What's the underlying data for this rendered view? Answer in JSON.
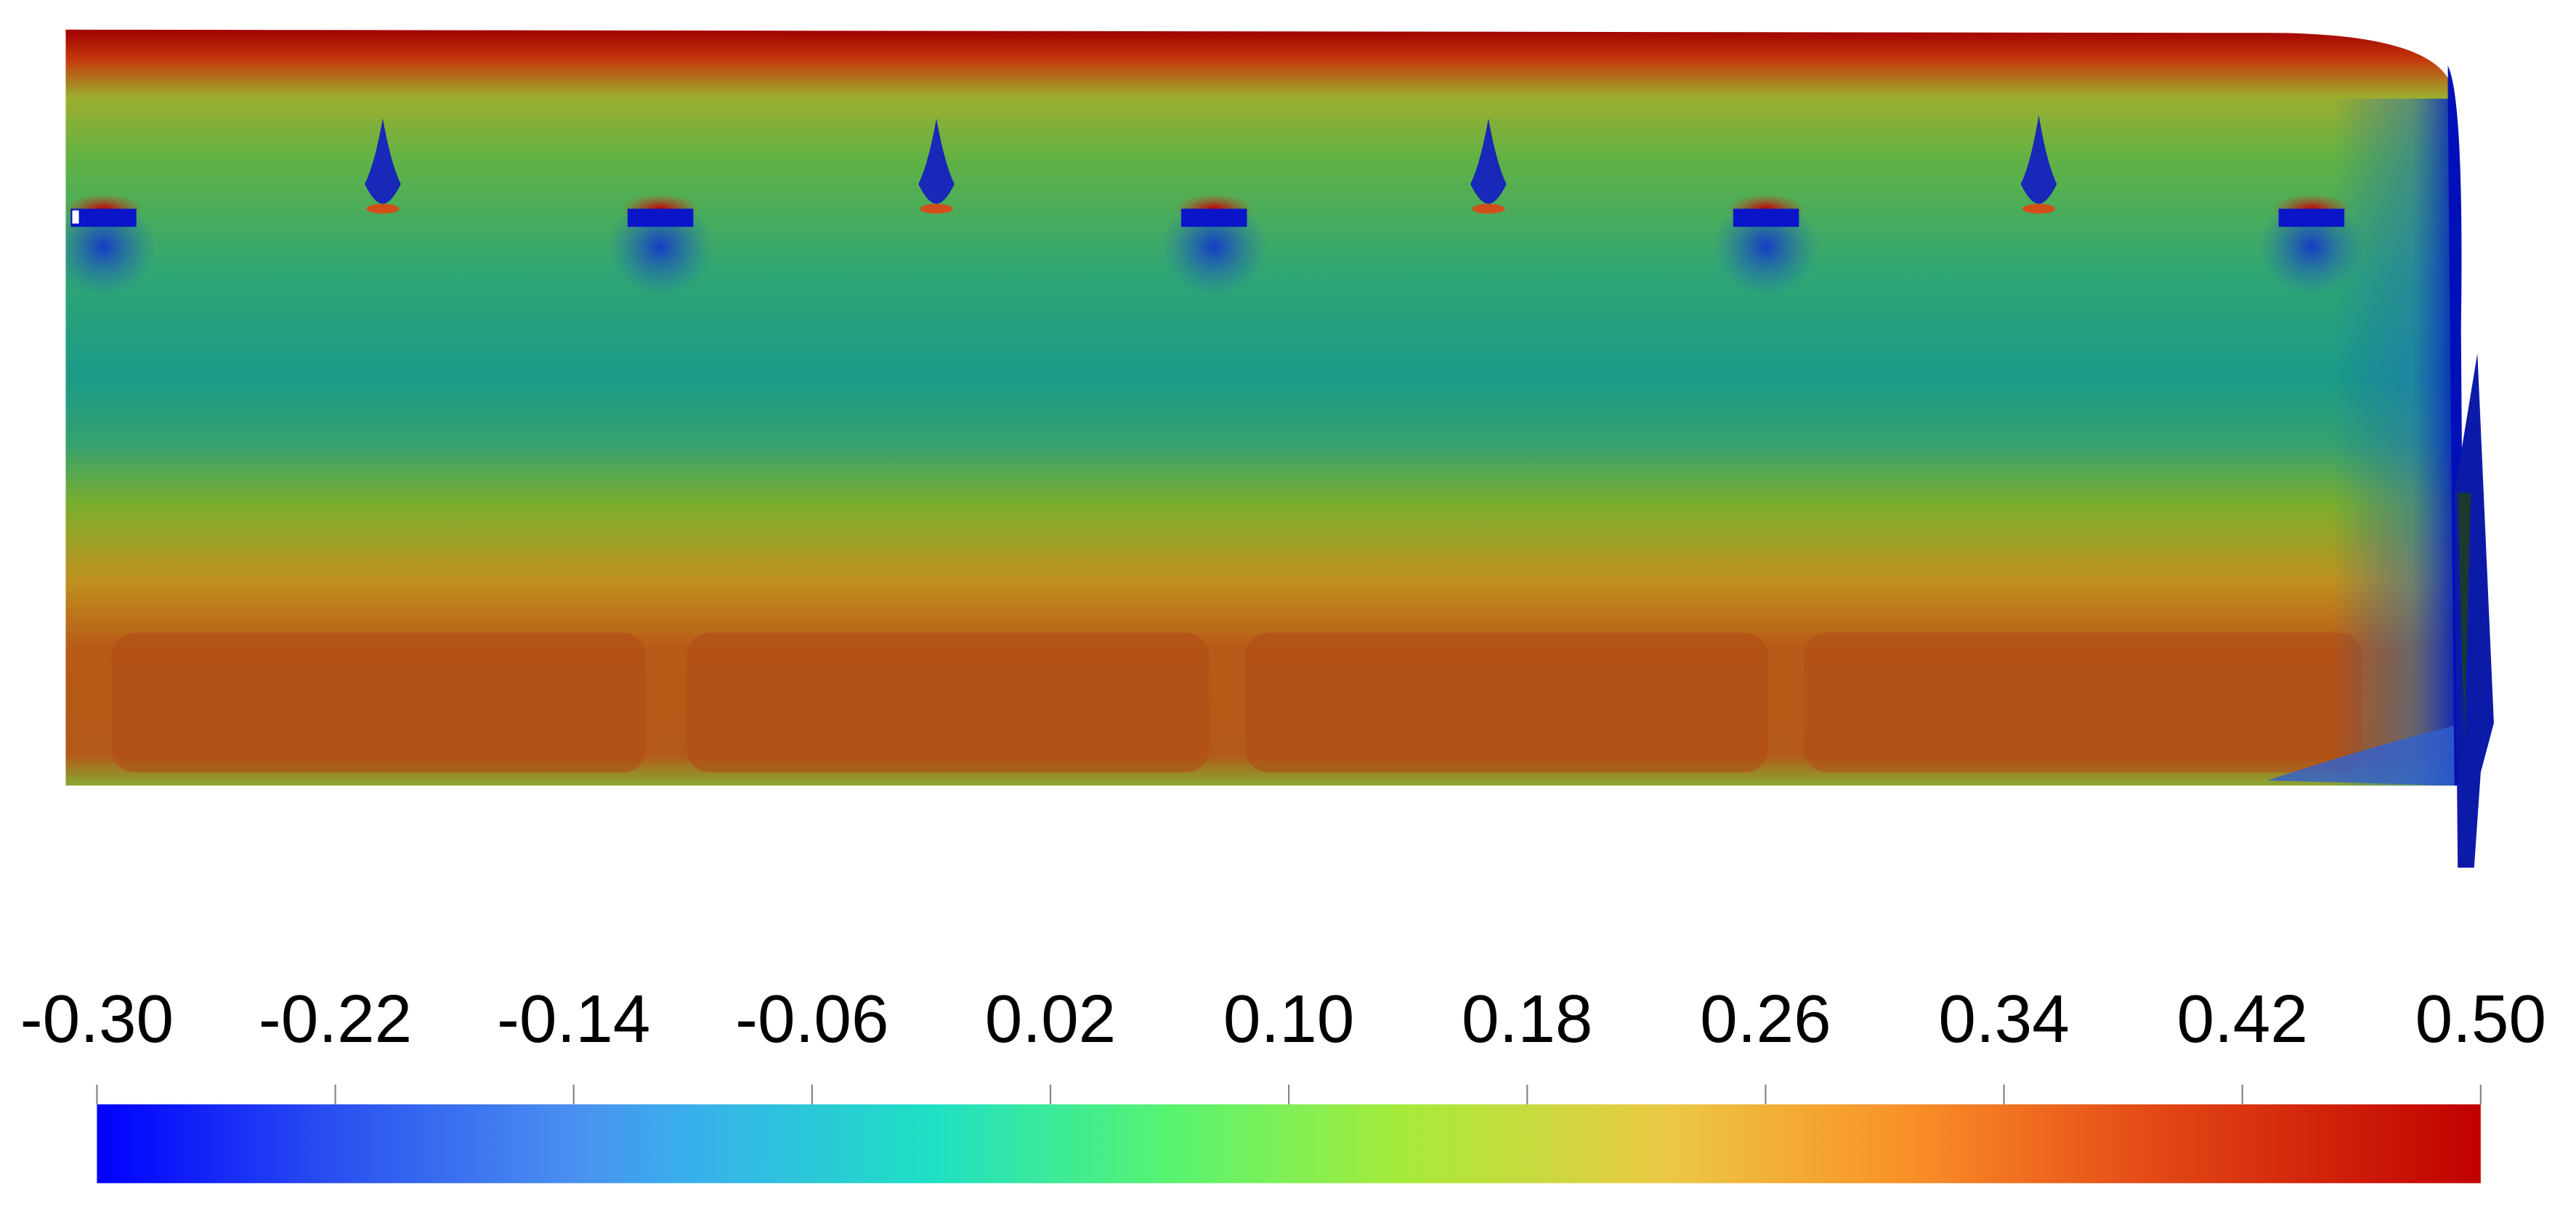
{
  "colorbar": {
    "range": [
      -0.3,
      0.5
    ],
    "ticks": [
      {
        "value": -0.3,
        "label": "-0.30"
      },
      -0.22,
      -0.14,
      -0.06,
      0.02,
      {
        "value": 0.1,
        "label": "0.10"
      },
      0.18,
      0.26,
      0.34,
      0.42,
      {
        "value": 0.5,
        "label": "0.50"
      }
    ]
  }
}
